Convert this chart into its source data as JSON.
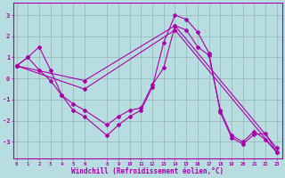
{
  "xlabel": "Windchill (Refroidissement éolien,°C)",
  "background_color": "#b8dde0",
  "axis_bar_color": "#7744aa",
  "grid_color": "#99bbbb",
  "line_color": "#aa00aa",
  "x_ticks": [
    0,
    1,
    2,
    3,
    4,
    5,
    6,
    8,
    9,
    10,
    11,
    12,
    13,
    14,
    15,
    16,
    17,
    18,
    19,
    20,
    21,
    22,
    23
  ],
  "ylim": [
    -3.8,
    3.6
  ],
  "xlim": [
    -0.3,
    23.5
  ],
  "series1": [
    [
      0,
      0.6
    ],
    [
      1,
      1.0
    ],
    [
      2,
      1.5
    ],
    [
      3,
      0.4
    ],
    [
      4,
      -0.8
    ],
    [
      5,
      -1.5
    ],
    [
      6,
      -1.8
    ],
    [
      8,
      -2.7
    ],
    [
      9,
      -2.2
    ],
    [
      10,
      -1.8
    ],
    [
      11,
      -1.5
    ],
    [
      12,
      -0.4
    ],
    [
      13,
      1.7
    ],
    [
      14,
      3.0
    ],
    [
      15,
      2.8
    ],
    [
      16,
      2.2
    ],
    [
      17,
      1.2
    ],
    [
      18,
      -1.6
    ],
    [
      19,
      -2.8
    ],
    [
      20,
      -3.1
    ],
    [
      21,
      -2.65
    ],
    [
      22,
      -2.6
    ],
    [
      23,
      -3.5
    ]
  ],
  "series2": [
    [
      0,
      0.6
    ],
    [
      1,
      1.0
    ],
    [
      2,
      0.4
    ],
    [
      3,
      -0.1
    ],
    [
      4,
      -0.8
    ],
    [
      5,
      -1.2
    ],
    [
      6,
      -1.5
    ],
    [
      8,
      -2.2
    ],
    [
      9,
      -1.8
    ],
    [
      10,
      -1.5
    ],
    [
      11,
      -1.4
    ],
    [
      12,
      -0.3
    ],
    [
      13,
      0.5
    ],
    [
      14,
      2.5
    ],
    [
      15,
      2.3
    ],
    [
      16,
      1.5
    ],
    [
      17,
      1.1
    ],
    [
      18,
      -1.5
    ],
    [
      19,
      -2.7
    ],
    [
      20,
      -3.0
    ],
    [
      21,
      -2.5
    ],
    [
      22,
      -2.9
    ],
    [
      23,
      -3.5
    ]
  ],
  "series3": [
    [
      0,
      0.6
    ],
    [
      6,
      -0.1
    ],
    [
      14,
      2.5
    ],
    [
      23,
      -3.3
    ]
  ],
  "series4": [
    [
      0,
      0.6
    ],
    [
      6,
      -0.5
    ],
    [
      14,
      2.3
    ],
    [
      23,
      -3.5
    ]
  ]
}
